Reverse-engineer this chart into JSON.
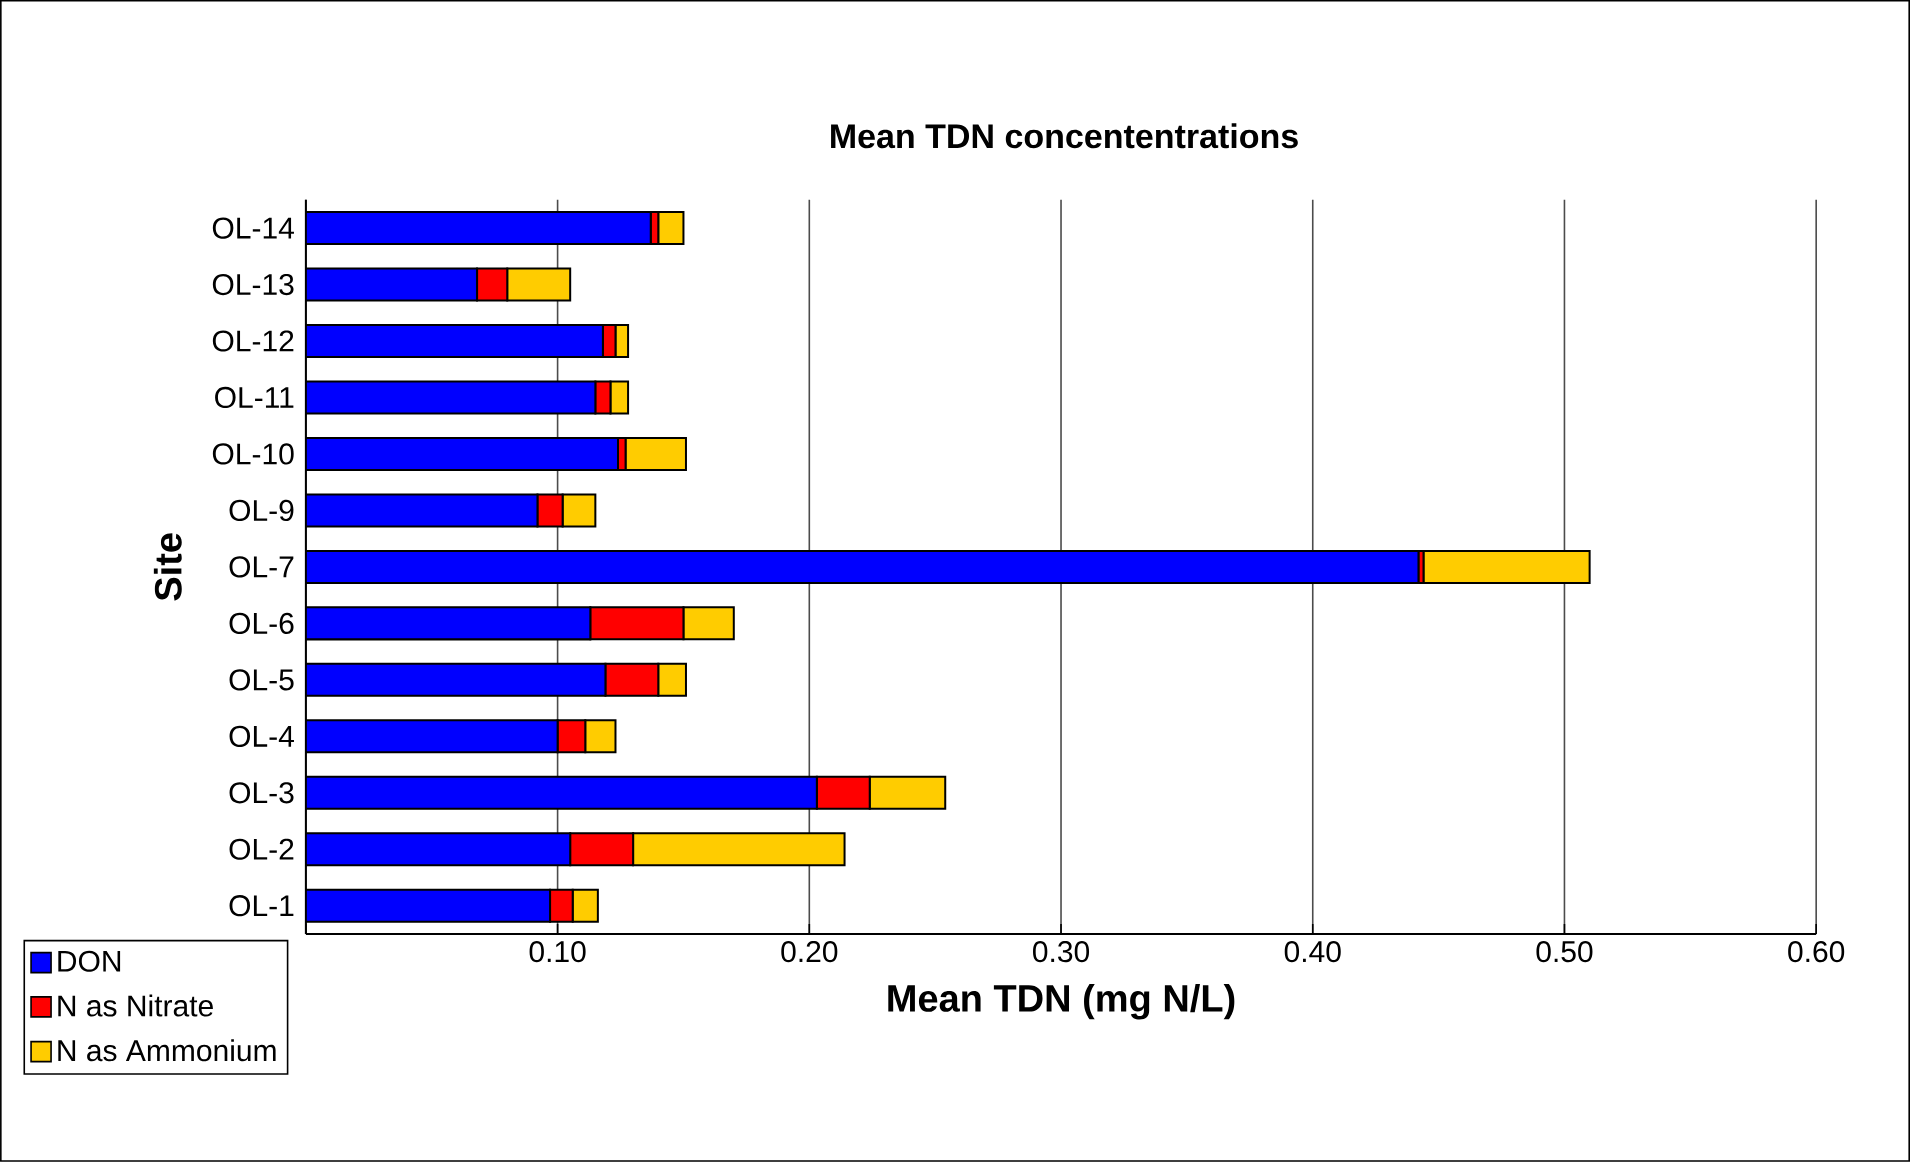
{
  "chart_data": {
    "type": "bar",
    "orientation": "horizontal",
    "stacked": true,
    "title": "Mean TDN concententrations",
    "xlabel": "Mean TDN (mg N/L)",
    "ylabel": "Site",
    "categories": [
      "OL-14",
      "OL-13",
      "OL-12",
      "OL-11",
      "OL-10",
      "OL-9",
      "OL-7",
      "OL-6",
      "OL-5",
      "OL-4",
      "OL-3",
      "OL-2",
      "OL-1"
    ],
    "series": [
      {
        "name": "DON",
        "color": "#0000ff",
        "values": [
          0.137,
          0.068,
          0.118,
          0.115,
          0.124,
          0.092,
          0.442,
          0.113,
          0.119,
          0.1,
          0.203,
          0.105,
          0.097
        ]
      },
      {
        "name": "N as Nitrate",
        "color": "#ff0000",
        "values": [
          0.003,
          0.012,
          0.005,
          0.006,
          0.003,
          0.01,
          0.002,
          0.037,
          0.021,
          0.011,
          0.021,
          0.025,
          0.009
        ]
      },
      {
        "name": "N as Ammonium",
        "color": "#ffcc00",
        "values": [
          0.01,
          0.025,
          0.005,
          0.007,
          0.024,
          0.013,
          0.066,
          0.02,
          0.011,
          0.012,
          0.03,
          0.084,
          0.01
        ]
      }
    ],
    "xlim": [
      0,
      0.6
    ],
    "xticks": [
      {
        "value": 0,
        "label": null
      },
      {
        "value": 0.1,
        "label": "0.10"
      },
      {
        "value": 0.2,
        "label": "0.20"
      },
      {
        "value": 0.3,
        "label": "0.30"
      },
      {
        "value": 0.4,
        "label": "0.40"
      },
      {
        "value": 0.5,
        "label": "0.50"
      },
      {
        "value": 0.6,
        "label": "0.60"
      }
    ],
    "grid": "x",
    "legend": "bottom left"
  }
}
